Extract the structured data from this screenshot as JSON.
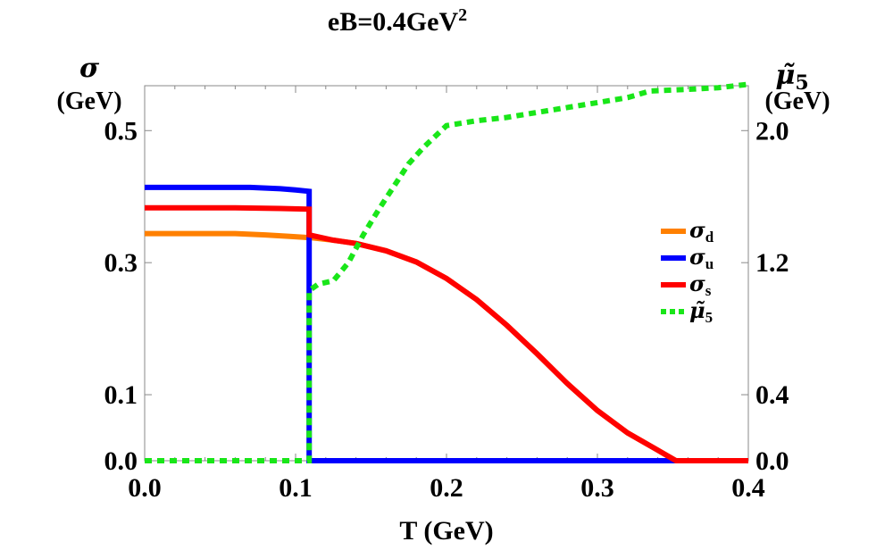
{
  "chart_data": {
    "type": "line",
    "title_main": "eB=0.4GeV",
    "title_sup": "2",
    "xlabel": "T (GeV)",
    "xlim": [
      0.0,
      0.4
    ],
    "x_ticks": [
      "0.0",
      "0.1",
      "0.2",
      "0.3",
      "0.4"
    ],
    "y_left": {
      "symbol": "σ",
      "unit": "(GeV)",
      "ylim": [
        0.0,
        0.568
      ],
      "ticks": [
        {
          "value": 0.0,
          "label": "0.0"
        },
        {
          "value": 0.1,
          "label": "0.1"
        },
        {
          "value": 0.3,
          "label": "0.3"
        },
        {
          "value": 0.5,
          "label": "0.5"
        }
      ]
    },
    "y_right": {
      "symbol": "μ̃",
      "subscript": "5",
      "unit": "(GeV)",
      "ylim": [
        0.0,
        2.272
      ],
      "ticks": [
        {
          "value": 0.0,
          "label": "0.0"
        },
        {
          "value": 0.4,
          "label": "0.4"
        },
        {
          "value": 1.2,
          "label": "1.2"
        },
        {
          "value": 2.0,
          "label": "2.0"
        }
      ]
    },
    "series": [
      {
        "name": "σ_d",
        "sym": "σ",
        "sub": "d",
        "axis": "left",
        "color": "#ff8000",
        "style": "solid",
        "points": [
          [
            0.0,
            0.344
          ],
          [
            0.06,
            0.344
          ],
          [
            0.08,
            0.342
          ],
          [
            0.095,
            0.34
          ],
          [
            0.109,
            0.338
          ],
          [
            0.11,
            0.338
          ],
          [
            0.125,
            0.334
          ],
          [
            0.14,
            0.329
          ],
          [
            0.16,
            0.318
          ],
          [
            0.18,
            0.301
          ],
          [
            0.2,
            0.276
          ],
          [
            0.22,
            0.244
          ],
          [
            0.24,
            0.205
          ],
          [
            0.26,
            0.162
          ],
          [
            0.28,
            0.117
          ],
          [
            0.3,
            0.076
          ],
          [
            0.32,
            0.042
          ],
          [
            0.34,
            0.016
          ],
          [
            0.352,
            0.0
          ],
          [
            0.4,
            0.0
          ]
        ]
      },
      {
        "name": "σ_u",
        "sym": "σ",
        "sub": "u",
        "axis": "left",
        "color": "#0000ff",
        "style": "solid",
        "points": [
          [
            0.0,
            0.414
          ],
          [
            0.05,
            0.414
          ],
          [
            0.07,
            0.414
          ],
          [
            0.09,
            0.412
          ],
          [
            0.1,
            0.41
          ],
          [
            0.109,
            0.408
          ],
          [
            0.109,
            0.0
          ],
          [
            0.4,
            0.0
          ]
        ]
      },
      {
        "name": "σ_s",
        "sym": "σ",
        "sub": "s",
        "axis": "left",
        "color": "#ff0000",
        "style": "solid",
        "points": [
          [
            0.0,
            0.383
          ],
          [
            0.06,
            0.383
          ],
          [
            0.09,
            0.382
          ],
          [
            0.109,
            0.381
          ],
          [
            0.109,
            0.342
          ],
          [
            0.125,
            0.334
          ],
          [
            0.14,
            0.329
          ],
          [
            0.16,
            0.318
          ],
          [
            0.18,
            0.301
          ],
          [
            0.2,
            0.276
          ],
          [
            0.22,
            0.244
          ],
          [
            0.24,
            0.205
          ],
          [
            0.26,
            0.162
          ],
          [
            0.28,
            0.117
          ],
          [
            0.3,
            0.076
          ],
          [
            0.32,
            0.042
          ],
          [
            0.34,
            0.016
          ],
          [
            0.352,
            0.0
          ],
          [
            0.4,
            0.0
          ]
        ]
      },
      {
        "name": "μ̃_5",
        "sym": "μ̃",
        "sub": "5",
        "axis": "right",
        "color": "#19e619",
        "style": "dotted",
        "points": [
          [
            0.0,
            0.0
          ],
          [
            0.109,
            0.0
          ],
          [
            0.109,
            1.03
          ],
          [
            0.115,
            1.07
          ],
          [
            0.125,
            1.09
          ],
          [
            0.135,
            1.2
          ],
          [
            0.145,
            1.37
          ],
          [
            0.155,
            1.52
          ],
          [
            0.165,
            1.66
          ],
          [
            0.175,
            1.8
          ],
          [
            0.185,
            1.9
          ],
          [
            0.2,
            2.03
          ],
          [
            0.22,
            2.06
          ],
          [
            0.24,
            2.08
          ],
          [
            0.26,
            2.11
          ],
          [
            0.28,
            2.14
          ],
          [
            0.3,
            2.17
          ],
          [
            0.32,
            2.2
          ],
          [
            0.335,
            2.24
          ],
          [
            0.36,
            2.25
          ],
          [
            0.38,
            2.26
          ],
          [
            0.4,
            2.28
          ]
        ]
      }
    ]
  }
}
